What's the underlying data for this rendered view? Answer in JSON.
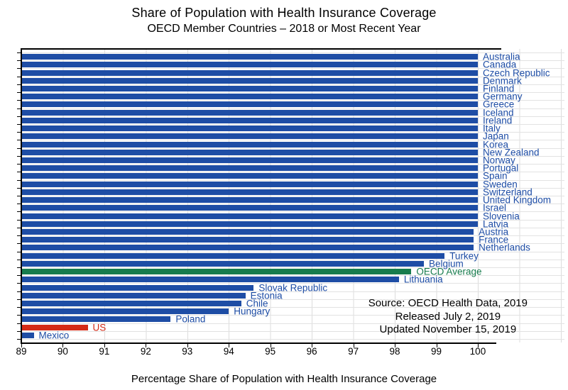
{
  "title": "Share of Population with Health Insurance Coverage",
  "subtitle": "OECD Member Countries – 2018 or Most Recent Year",
  "source": {
    "line1": "Source:  OECD Health Data, 2019",
    "line2": "Released July 2, 2019",
    "line3": "Updated November 15, 2019"
  },
  "colors": {
    "bar": "#1e4da5",
    "us": "#d52b16",
    "oecd": "#177c4d",
    "grid": "#dcdcdc",
    "axis": "#000000"
  },
  "chart_data": {
    "type": "bar",
    "orientation": "horizontal",
    "title": "Share of Population with Health Insurance Coverage",
    "subtitle": "OECD Member Countries – 2018 or Most Recent Year",
    "xlabel": "Percentage Share of Population with Health Insurance Coverage",
    "ylabel": "",
    "xlim": [
      89,
      100
    ],
    "xticks": [
      89,
      90,
      91,
      92,
      93,
      94,
      95,
      96,
      97,
      98,
      99,
      100
    ],
    "grid": true,
    "legend": "none",
    "series": [
      {
        "label": "Australia",
        "value": 100.0,
        "role": "default"
      },
      {
        "label": "Canada",
        "value": 100.0,
        "role": "default"
      },
      {
        "label": "Czech Republic",
        "value": 100.0,
        "role": "default"
      },
      {
        "label": "Denmark",
        "value": 100.0,
        "role": "default"
      },
      {
        "label": "Finland",
        "value": 100.0,
        "role": "default"
      },
      {
        "label": "Germany",
        "value": 100.0,
        "role": "default"
      },
      {
        "label": "Greece",
        "value": 100.0,
        "role": "default"
      },
      {
        "label": "Iceland",
        "value": 100.0,
        "role": "default"
      },
      {
        "label": "Ireland",
        "value": 100.0,
        "role": "default"
      },
      {
        "label": "Italy",
        "value": 100.0,
        "role": "default"
      },
      {
        "label": "Japan",
        "value": 100.0,
        "role": "default"
      },
      {
        "label": "Korea",
        "value": 100.0,
        "role": "default"
      },
      {
        "label": "New Zealand",
        "value": 100.0,
        "role": "default"
      },
      {
        "label": "Norway",
        "value": 100.0,
        "role": "default"
      },
      {
        "label": "Portugal",
        "value": 100.0,
        "role": "default"
      },
      {
        "label": "Spain",
        "value": 100.0,
        "role": "default"
      },
      {
        "label": "Sweden",
        "value": 100.0,
        "role": "default"
      },
      {
        "label": "Switzerland",
        "value": 100.0,
        "role": "default"
      },
      {
        "label": "United Kingdom",
        "value": 100.0,
        "role": "default"
      },
      {
        "label": "Israel",
        "value": 100.0,
        "role": "default"
      },
      {
        "label": "Slovenia",
        "value": 100.0,
        "role": "default"
      },
      {
        "label": "Latvia",
        "value": 100.0,
        "role": "default"
      },
      {
        "label": "Austria",
        "value": 99.9,
        "role": "default"
      },
      {
        "label": "France",
        "value": 99.9,
        "role": "default"
      },
      {
        "label": "Netherlands",
        "value": 99.9,
        "role": "default"
      },
      {
        "label": "Turkey",
        "value": 99.2,
        "role": "default"
      },
      {
        "label": "Belgium",
        "value": 98.7,
        "role": "default"
      },
      {
        "label": "OECD Average",
        "value": 98.4,
        "role": "oecd"
      },
      {
        "label": "Lithuania",
        "value": 98.1,
        "role": "default"
      },
      {
        "label": "Slovak Republic",
        "value": 94.6,
        "role": "default"
      },
      {
        "label": "Estonia",
        "value": 94.4,
        "role": "default"
      },
      {
        "label": "Chile",
        "value": 94.3,
        "role": "default"
      },
      {
        "label": "Hungary",
        "value": 94.0,
        "role": "default"
      },
      {
        "label": "Poland",
        "value": 92.6,
        "role": "default"
      },
      {
        "label": "US",
        "value": 90.6,
        "role": "us"
      },
      {
        "label": "Mexico",
        "value": 89.3,
        "role": "default"
      }
    ]
  }
}
